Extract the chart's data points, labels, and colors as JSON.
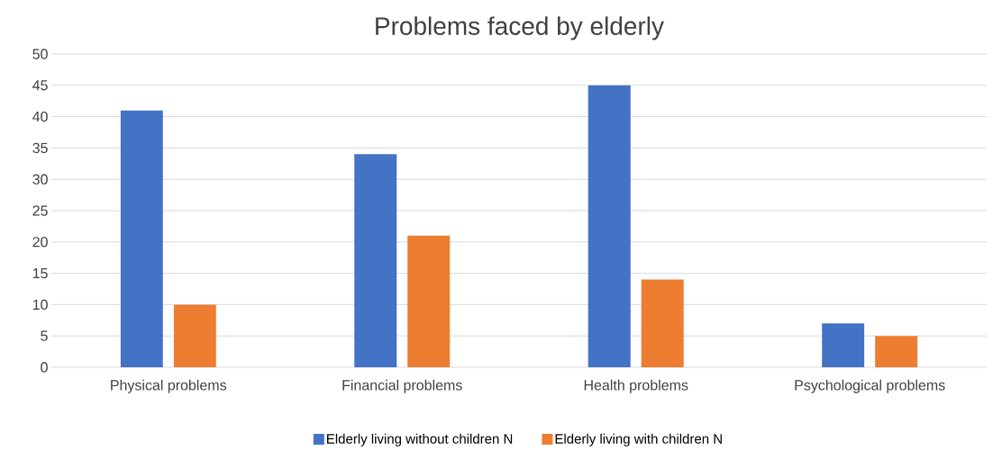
{
  "chart_data": {
    "type": "bar",
    "title": "Problems faced by elderly",
    "categories": [
      "Physical problems",
      "Financial problems",
      "Health problems",
      "Psychological problems"
    ],
    "series": [
      {
        "name": "Elderly living without children N",
        "color": "#4472c4",
        "values": [
          41,
          34,
          45,
          7
        ]
      },
      {
        "name": "Elderly living with children N",
        "color": "#ed7d31",
        "values": [
          10,
          21,
          14,
          5
        ]
      }
    ],
    "ylim": [
      0,
      50
    ],
    "yticks": [
      0,
      5,
      10,
      15,
      20,
      25,
      30,
      35,
      40,
      45,
      50
    ],
    "grid": "y",
    "legend": "bottom"
  }
}
